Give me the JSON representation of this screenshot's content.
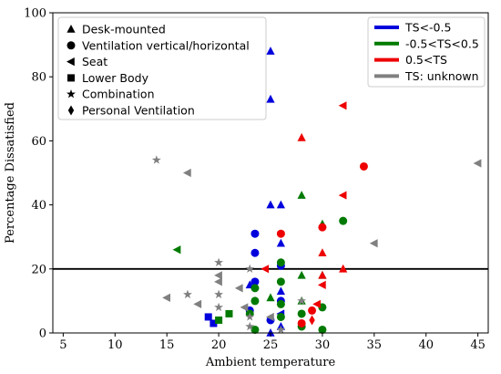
{
  "chart_data": {
    "type": "scatter",
    "xlabel": "Ambient temperature",
    "ylabel": "Percentage Dissatisfied",
    "xlim": [
      4,
      46
    ],
    "ylim": [
      0,
      100
    ],
    "xticks": [
      5,
      10,
      15,
      20,
      25,
      30,
      35,
      40,
      45
    ],
    "yticks": [
      0,
      20,
      40,
      60,
      80,
      100
    ],
    "reference_line": {
      "y": 20,
      "color": "#000000"
    },
    "grid": false,
    "shape_legend": {
      "placement": "top-left",
      "entries": [
        {
          "marker": "triangle-up",
          "label": "Desk-mounted"
        },
        {
          "marker": "circle",
          "label": "Ventilation vertical/horizontal"
        },
        {
          "marker": "triangle-left",
          "label": "Seat"
        },
        {
          "marker": "square",
          "label": "Lower Body"
        },
        {
          "marker": "star",
          "label": "Combination"
        },
        {
          "marker": "diamond",
          "label": "Personal Ventilation"
        }
      ]
    },
    "color_legend": {
      "placement": "top-right",
      "entries": [
        {
          "color": "#0000dd",
          "label": "TS<-0.5"
        },
        {
          "color": "#007a00",
          "label": "-0.5<TS<0.5"
        },
        {
          "color": "#ee0000",
          "label": "0.5<TS"
        },
        {
          "color": "#808080",
          "label": "TS: unknown"
        }
      ]
    },
    "series": [
      {
        "category": "TS<-0.5",
        "color": "#0000dd",
        "points": [
          {
            "x": 25,
            "y": 88,
            "marker": "triangle-up"
          },
          {
            "x": 25,
            "y": 73,
            "marker": "triangle-up"
          },
          {
            "x": 25,
            "y": 40,
            "marker": "triangle-up"
          },
          {
            "x": 26,
            "y": 40,
            "marker": "triangle-up"
          },
          {
            "x": 23.5,
            "y": 31,
            "marker": "circle"
          },
          {
            "x": 26,
            "y": 28,
            "marker": "triangle-up"
          },
          {
            "x": 23.5,
            "y": 25,
            "marker": "circle"
          },
          {
            "x": 26,
            "y": 21,
            "marker": "circle"
          },
          {
            "x": 23.5,
            "y": 16,
            "marker": "circle"
          },
          {
            "x": 23,
            "y": 15,
            "marker": "triangle-up"
          },
          {
            "x": 26,
            "y": 13,
            "marker": "triangle-up"
          },
          {
            "x": 26,
            "y": 10,
            "marker": "circle"
          },
          {
            "x": 23,
            "y": 7,
            "marker": "circle"
          },
          {
            "x": 26,
            "y": 6,
            "marker": "triangle-left"
          },
          {
            "x": 19,
            "y": 5,
            "marker": "square"
          },
          {
            "x": 19.5,
            "y": 3,
            "marker": "square"
          },
          {
            "x": 25,
            "y": 4,
            "marker": "circle"
          },
          {
            "x": 26,
            "y": 2,
            "marker": "triangle-up"
          },
          {
            "x": 25,
            "y": 0,
            "marker": "triangle-up"
          }
        ]
      },
      {
        "category": "-0.5<TS<0.5",
        "color": "#007a00",
        "points": [
          {
            "x": 28,
            "y": 43,
            "marker": "triangle-up"
          },
          {
            "x": 32,
            "y": 35,
            "marker": "circle"
          },
          {
            "x": 30,
            "y": 34,
            "marker": "triangle-up"
          },
          {
            "x": 16,
            "y": 26,
            "marker": "triangle-left"
          },
          {
            "x": 26,
            "y": 22,
            "marker": "circle"
          },
          {
            "x": 28,
            "y": 18,
            "marker": "triangle-up"
          },
          {
            "x": 30,
            "y": 18,
            "marker": "triangle-up"
          },
          {
            "x": 26,
            "y": 16,
            "marker": "circle"
          },
          {
            "x": 23.5,
            "y": 14,
            "marker": "circle"
          },
          {
            "x": 25,
            "y": 11,
            "marker": "triangle-up"
          },
          {
            "x": 23.5,
            "y": 10,
            "marker": "circle"
          },
          {
            "x": 28,
            "y": 10,
            "marker": "triangle-up"
          },
          {
            "x": 26,
            "y": 9,
            "marker": "circle"
          },
          {
            "x": 30,
            "y": 8,
            "marker": "circle"
          },
          {
            "x": 21,
            "y": 6,
            "marker": "square"
          },
          {
            "x": 23,
            "y": 6,
            "marker": "circle"
          },
          {
            "x": 28,
            "y": 6,
            "marker": "circle"
          },
          {
            "x": 20,
            "y": 4,
            "marker": "square"
          },
          {
            "x": 26,
            "y": 5,
            "marker": "circle"
          },
          {
            "x": 28,
            "y": 2,
            "marker": "circle"
          },
          {
            "x": 23.5,
            "y": 1,
            "marker": "circle"
          },
          {
            "x": 30,
            "y": 1,
            "marker": "circle"
          }
        ]
      },
      {
        "category": "0.5<TS",
        "color": "#ee0000",
        "points": [
          {
            "x": 32,
            "y": 71,
            "marker": "triangle-left"
          },
          {
            "x": 28,
            "y": 61,
            "marker": "triangle-up"
          },
          {
            "x": 34,
            "y": 52,
            "marker": "circle"
          },
          {
            "x": 32,
            "y": 43,
            "marker": "triangle-left"
          },
          {
            "x": 30,
            "y": 33,
            "marker": "circle"
          },
          {
            "x": 26,
            "y": 31,
            "marker": "circle"
          },
          {
            "x": 30,
            "y": 25,
            "marker": "triangle-up"
          },
          {
            "x": 24.5,
            "y": 20,
            "marker": "triangle-left"
          },
          {
            "x": 32,
            "y": 20,
            "marker": "triangle-up"
          },
          {
            "x": 30,
            "y": 18,
            "marker": "triangle-up"
          },
          {
            "x": 30,
            "y": 15,
            "marker": "triangle-left"
          },
          {
            "x": 29.5,
            "y": 9,
            "marker": "triangle-left"
          },
          {
            "x": 29,
            "y": 7,
            "marker": "circle"
          },
          {
            "x": 29,
            "y": 4,
            "marker": "diamond"
          },
          {
            "x": 28,
            "y": 3,
            "marker": "circle"
          }
        ]
      },
      {
        "category": "TS: unknown",
        "color": "#808080",
        "points": [
          {
            "x": 14,
            "y": 54,
            "marker": "star"
          },
          {
            "x": 17,
            "y": 50,
            "marker": "triangle-left"
          },
          {
            "x": 45,
            "y": 53,
            "marker": "triangle-left"
          },
          {
            "x": 35,
            "y": 28,
            "marker": "triangle-left"
          },
          {
            "x": 20,
            "y": 22,
            "marker": "star"
          },
          {
            "x": 23,
            "y": 20,
            "marker": "star"
          },
          {
            "x": 20,
            "y": 18,
            "marker": "triangle-left"
          },
          {
            "x": 20,
            "y": 16,
            "marker": "triangle-left"
          },
          {
            "x": 20,
            "y": 12,
            "marker": "star"
          },
          {
            "x": 22,
            "y": 14,
            "marker": "triangle-left"
          },
          {
            "x": 15,
            "y": 11,
            "marker": "triangle-left"
          },
          {
            "x": 17,
            "y": 12,
            "marker": "star"
          },
          {
            "x": 18,
            "y": 9,
            "marker": "triangle-left"
          },
          {
            "x": 20,
            "y": 8,
            "marker": "star"
          },
          {
            "x": 22.5,
            "y": 8,
            "marker": "triangle-left"
          },
          {
            "x": 23,
            "y": 5,
            "marker": "star"
          },
          {
            "x": 25,
            "y": 5,
            "marker": "triangle-left"
          },
          {
            "x": 23,
            "y": 2,
            "marker": "star"
          },
          {
            "x": 28,
            "y": 10,
            "marker": "star"
          },
          {
            "x": 26,
            "y": 1,
            "marker": "star"
          }
        ]
      }
    ]
  }
}
